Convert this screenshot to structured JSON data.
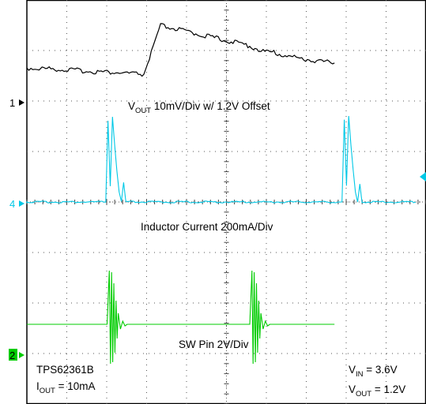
{
  "chart_data": {
    "type": "line",
    "title": "",
    "xlabel": "",
    "ylabel": "",
    "grid": true,
    "grid_divisions": {
      "x": 10,
      "y": 8
    },
    "channel_markers": [
      {
        "label": "1",
        "color": "#000000"
      },
      {
        "label": "4",
        "color": "#00c8e6"
      },
      {
        "label": "2",
        "color": "#00cc00",
        "boxed": true
      }
    ],
    "series": [
      {
        "channel": "1",
        "color": "#000000",
        "x": [
          0,
          0.45,
          0.55,
          0.6,
          1.0,
          2.0,
          3.0,
          4.0,
          5.0,
          5.25,
          6.0,
          7.0,
          8.0,
          9.0,
          10.0,
          10.4,
          10.5,
          10.6,
          11.0,
          12.0,
          13.0,
          13.8
        ],
        "y": [
          0.06,
          0.05,
          0.05,
          0.05,
          0.045,
          0.02,
          -0.01,
          -0.03,
          -0.06,
          -0.065,
          0.9,
          0.8,
          0.7,
          0.6,
          0.5,
          0.42,
          0.4,
          0.39,
          0.37,
          0.27,
          0.2,
          0.16
        ]
      },
      {
        "channel": "4",
        "color": "#00c8e6",
        "x": [
          0,
          5.1,
          5.2,
          5.3,
          5.4,
          5.5,
          5.6,
          5.7,
          5.8,
          5.9,
          6.0,
          6.1,
          15.6,
          15.7,
          15.8,
          15.9,
          16.0,
          16.1,
          16.2,
          16.3,
          16.4,
          16.5,
          16.6,
          19.0
        ],
        "y": [
          0,
          0,
          2.6,
          0.5,
          2.7,
          1.8,
          1.0,
          0.3,
          0.0,
          0.6,
          0.0,
          0,
          0,
          0,
          2.6,
          0.5,
          2.7,
          1.8,
          1.0,
          0.3,
          0.0,
          0.6,
          0.0,
          0
        ]
      },
      {
        "channel": "2",
        "color": "#00cc00",
        "x": [
          0,
          3.6,
          3.7,
          3.75,
          3.8,
          3.85,
          3.9,
          3.95,
          4.0,
          4.05,
          4.1,
          4.2,
          4.3,
          4.4,
          4.5,
          10.0,
          10.1,
          10.15,
          10.2,
          10.25,
          10.3,
          10.35,
          10.4,
          10.45,
          10.5,
          10.6,
          10.7,
          10.8,
          10.9,
          13.8
        ],
        "y": [
          0,
          0,
          3.4,
          -2.5,
          3.3,
          -2.4,
          2.6,
          -1.8,
          1.5,
          -0.9,
          0.7,
          -0.3,
          0.2,
          -0.1,
          0,
          0,
          3.4,
          -2.5,
          3.3,
          -2.4,
          2.6,
          -1.8,
          1.5,
          -0.9,
          0.7,
          -0.3,
          0.2,
          -0.1,
          0,
          0
        ]
      }
    ],
    "annotations": {
      "vout_label": {
        "main": "V",
        "sub": "OUT",
        "rest": " 10mV/Div w/ 1.2V Offset"
      },
      "inductor_label": "Inductor Current 200mA/Div",
      "sw_label": "SW Pin 2V/Div",
      "part_number": "TPS62361B",
      "iout_label": {
        "main": "I",
        "sub": "OUT",
        "rest": " = 10mA"
      },
      "vin_label": {
        "main": "V",
        "sub": "IN",
        "rest": " = 3.6V"
      },
      "vout_set_label": {
        "main": "V",
        "sub": "OUT",
        "rest": " = 1.2V"
      }
    }
  }
}
